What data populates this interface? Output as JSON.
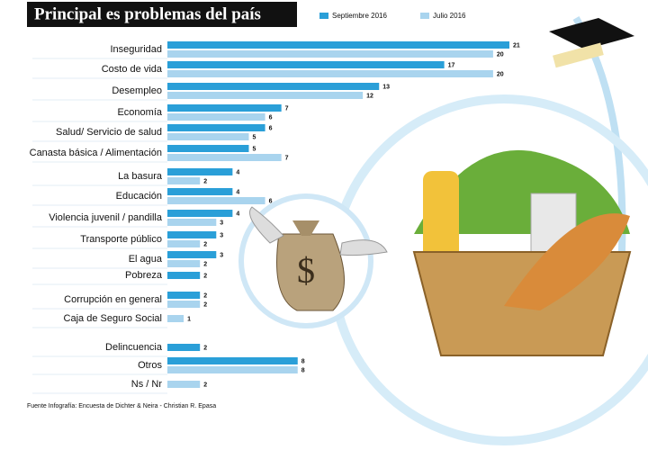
{
  "chart_data": {
    "type": "bar",
    "orientation": "horizontal",
    "title": "Principal es problemas del país",
    "categories": [
      "Inseguridad",
      "Costo de vida",
      "Desempleo",
      "Economía",
      "Salud/ Servicio de salud",
      "Canasta básica / Alimentación",
      "La basura",
      "Educación",
      "Violencia juvenil / pandilla",
      "Transporte público",
      "El agua",
      "Pobreza",
      "Corrupción en general",
      "Caja de Seguro Social",
      "Delincuencia",
      "Otros",
      "Ns / Nr"
    ],
    "series": [
      {
        "name": "Septiembre 2016",
        "color": "#2a9fd8",
        "values": [
          21,
          17,
          13,
          7,
          6,
          5,
          4,
          4,
          4,
          3,
          3,
          2,
          2,
          null,
          2,
          8,
          null
        ]
      },
      {
        "name": "Julio 2016",
        "color": "#a9d4ee",
        "values": [
          20,
          20,
          12,
          6,
          5,
          7,
          2,
          6,
          3,
          2,
          2,
          null,
          2,
          1,
          null,
          8,
          2
        ]
      }
    ],
    "source": "Fuente Infografía: Encuesta de Dichter & Neira - Christian R. Epasa"
  }
}
